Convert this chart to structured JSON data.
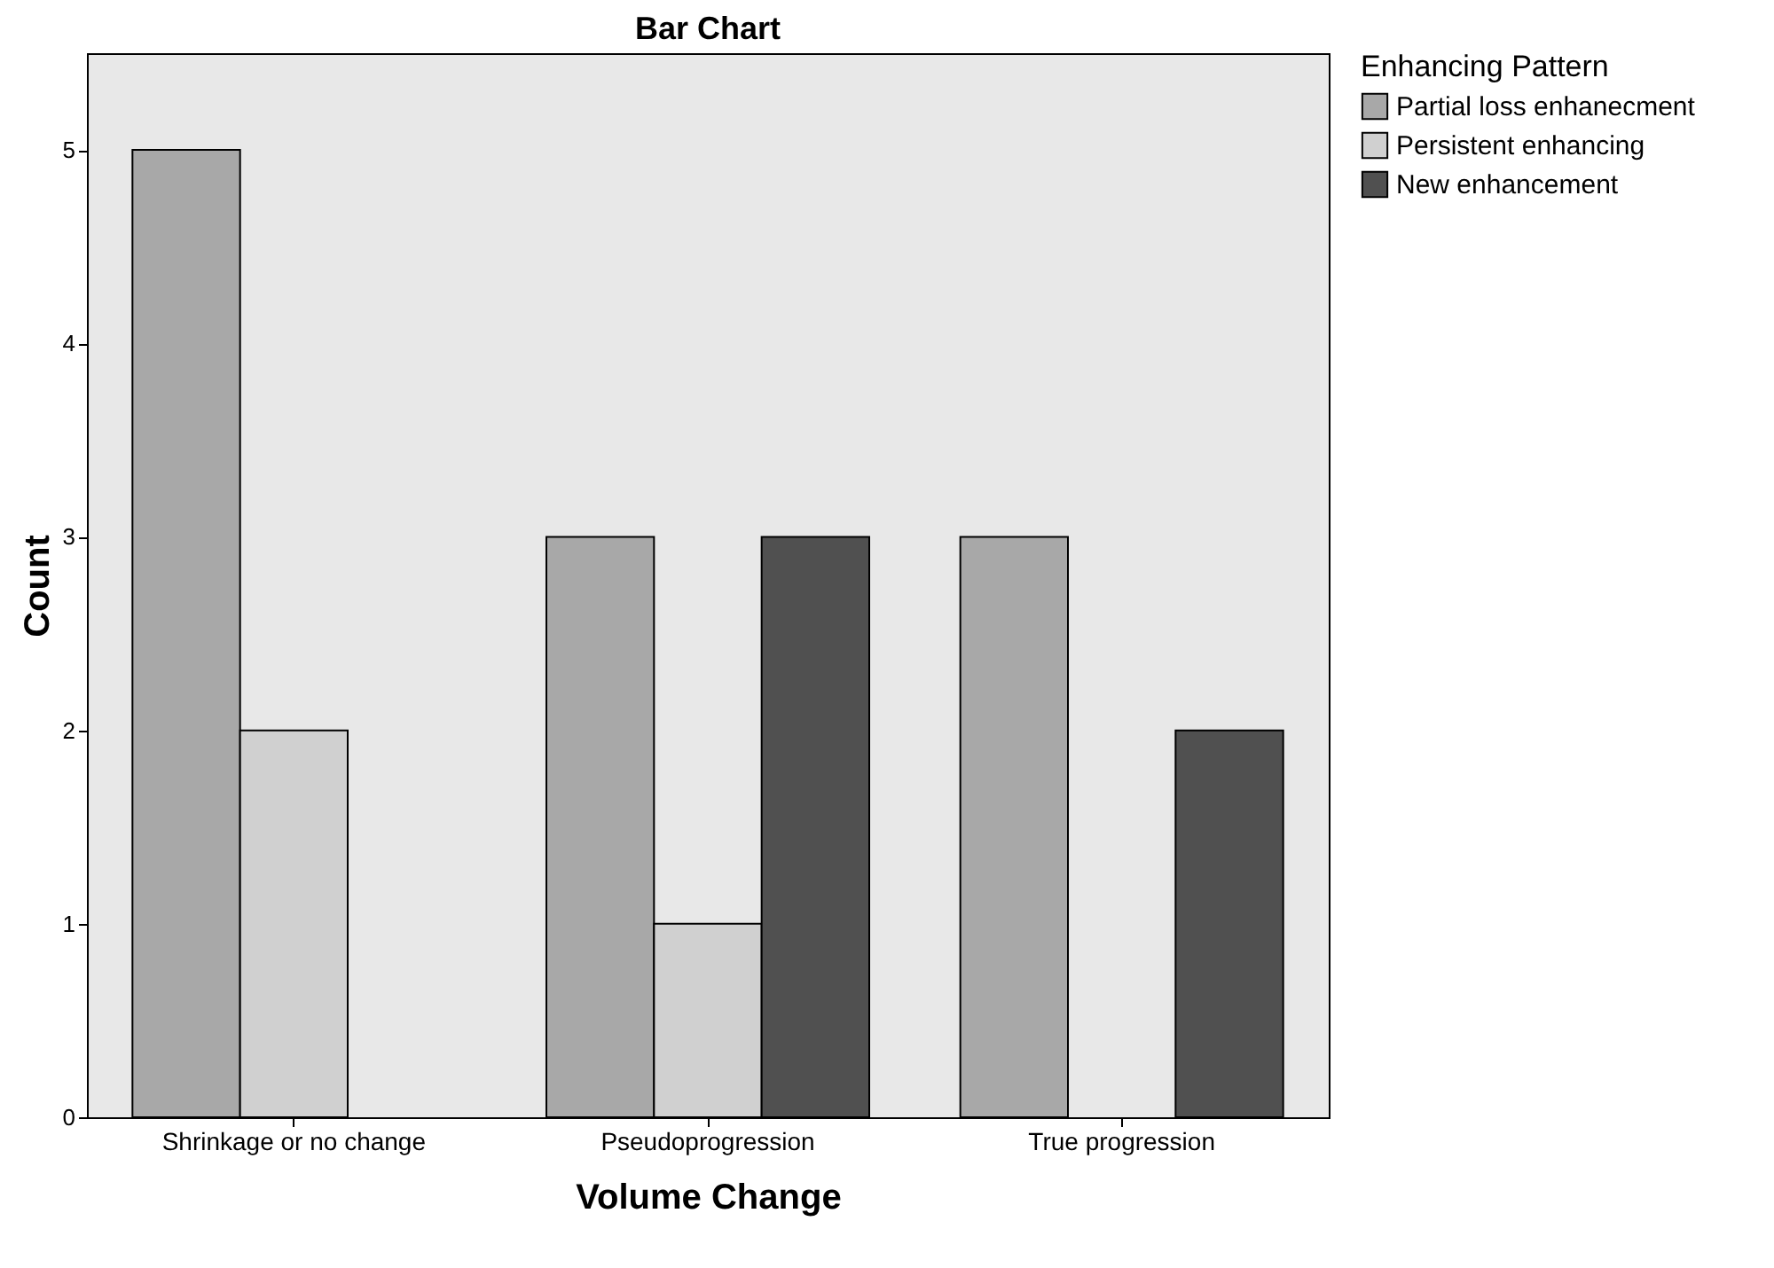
{
  "chart_data": {
    "type": "bar",
    "title": "Bar Chart",
    "xlabel": "Volume Change",
    "ylabel": "Count",
    "legend_title": "Enhancing Pattern",
    "legend": "top right",
    "grid": false,
    "categories": [
      "Shrinkage or no change",
      "Pseudoprogression",
      "True progression"
    ],
    "series": [
      {
        "name": "Partial loss enhanecment",
        "color": "#a8a8a8",
        "values": [
          5,
          3,
          3
        ]
      },
      {
        "name": "Persistent enhancing",
        "color": "#d0d0d0",
        "values": [
          2,
          1,
          null
        ]
      },
      {
        "name": "New enhancement",
        "color": "#505050",
        "values": [
          null,
          3,
          2
        ]
      }
    ],
    "ylim": [
      0,
      5.5
    ],
    "yticks": [
      0,
      1,
      2,
      3,
      4,
      5
    ]
  }
}
